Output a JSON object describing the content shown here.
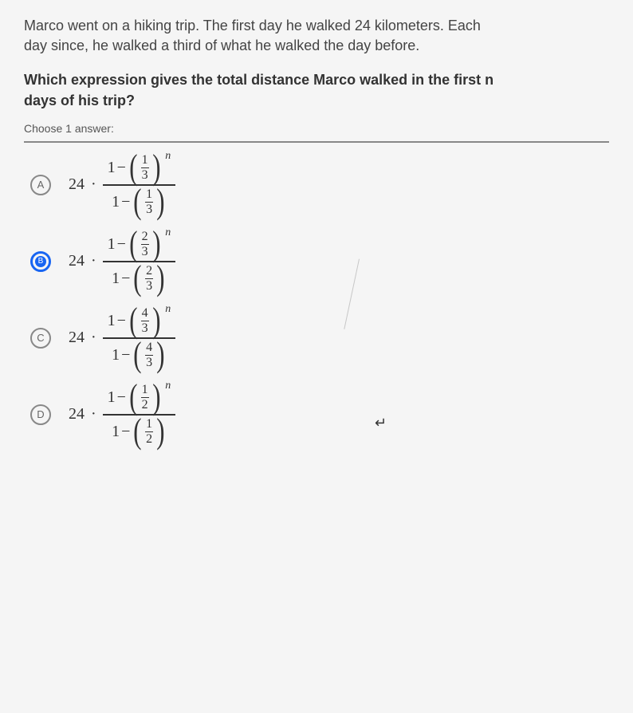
{
  "question": {
    "context_line1": "Marco went on a hiking trip. The first day he walked 24 kilometers. Each",
    "context_line2": "day since, he walked a third of what he walked the day before.",
    "prompt_line1": "Which expression gives the total distance Marco walked in the first n",
    "prompt_line2": "days of his trip?",
    "choose_label": "Choose 1 answer:"
  },
  "formula": {
    "coefficient": "24",
    "operator": "·",
    "one": "1",
    "minus": "−",
    "exponent": "n",
    "lparen": "(",
    "rparen": ")"
  },
  "answers": [
    {
      "letter": "A",
      "selected": false,
      "ratio_num": "1",
      "ratio_den": "3"
    },
    {
      "letter": "B",
      "selected": true,
      "ratio_num": "2",
      "ratio_den": "3"
    },
    {
      "letter": "C",
      "selected": false,
      "ratio_num": "4",
      "ratio_den": "3"
    },
    {
      "letter": "D",
      "selected": false,
      "ratio_num": "1",
      "ratio_den": "2"
    }
  ],
  "colors": {
    "text": "#333333",
    "muted": "#555555",
    "accent": "#1865f2",
    "background": "#f5f5f5"
  }
}
